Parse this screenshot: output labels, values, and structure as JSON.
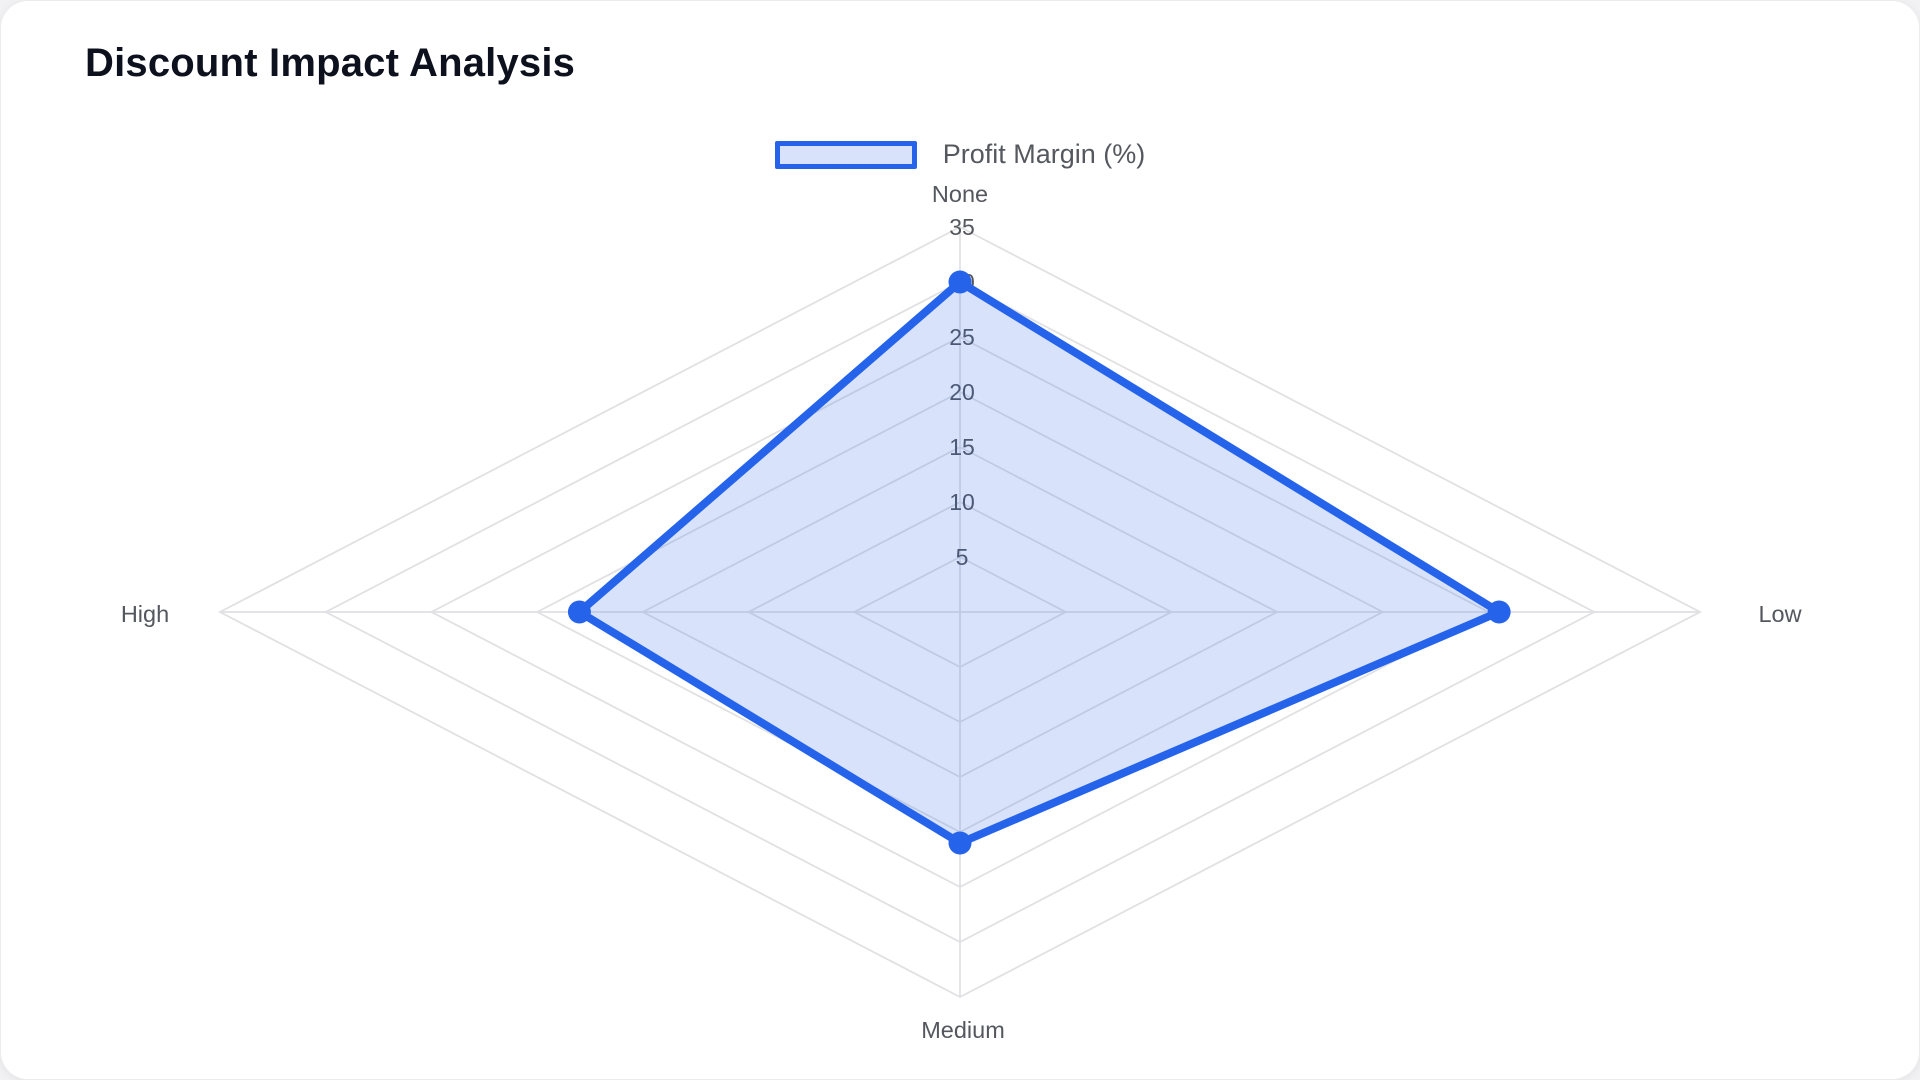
{
  "card": {
    "title": "Discount Impact Analysis"
  },
  "legend": {
    "label": "Profit Margin (%)",
    "swatch_border_color": "#2563eb",
    "swatch_fill_color": "rgba(37,99,235,0.18)"
  },
  "chart_data": {
    "type": "radar",
    "title": "Discount Impact Analysis",
    "categories": [
      "None",
      "Low",
      "Medium",
      "High"
    ],
    "series": [
      {
        "name": "Profit Margin (%)",
        "values": [
          30,
          25.5,
          21,
          18
        ]
      }
    ],
    "rmin": 0,
    "rmax": 35,
    "tick_step": 5,
    "ticks": [
      5,
      10,
      15,
      20,
      25,
      30,
      35
    ],
    "grid": true,
    "grid_shape": "polygon-4-axes",
    "legend_position": "top",
    "colors": {
      "line": "#2563eb",
      "fill": "rgba(37,99,235,0.18)",
      "point": "#2563eb",
      "grid": "#e1e1e4",
      "ticks": "#54575d",
      "axis_labels": "#54575d"
    }
  }
}
